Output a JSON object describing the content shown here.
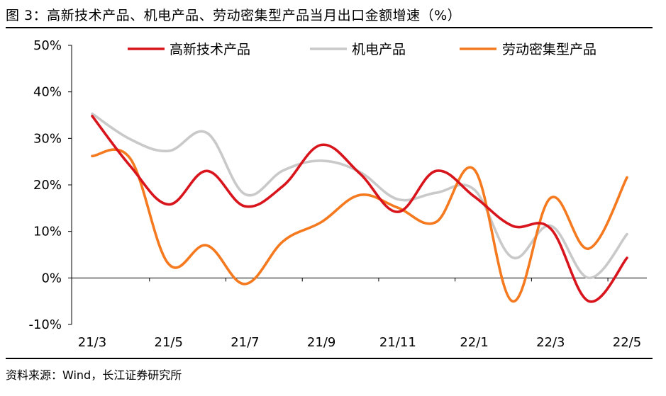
{
  "figure": {
    "title": "图 3：高新技术产品、机电产品、劳动密集型产品当月出口金额增速（%）",
    "source": "资料来源：Wind，长江证券研究所"
  },
  "chart_data": {
    "type": "line",
    "title": "高新技术产品、机电产品、劳动密集型产品当月出口金额增速（%）",
    "xlabel": "",
    "ylabel": "",
    "ylim": [
      -10,
      50
    ],
    "yticks": [
      -10,
      0,
      10,
      20,
      30,
      40,
      50
    ],
    "ytick_labels": [
      "-10%",
      "0%",
      "10%",
      "20%",
      "30%",
      "40%",
      "50%"
    ],
    "xtick_labels": [
      "21/3",
      "21/5",
      "21/7",
      "21/9",
      "21/11",
      "22/1",
      "22/3",
      "22/5"
    ],
    "categories": [
      "21/3",
      "21/4",
      "21/5",
      "21/6",
      "21/7",
      "21/8",
      "21/9",
      "21/10",
      "21/11",
      "21/12",
      "22/1",
      "22/2",
      "22/3",
      "22/4",
      "22/5"
    ],
    "legend_position": "top",
    "series": [
      {
        "name": "高新技术产品",
        "color": "#d8141c",
        "values": [
          34.8,
          24.0,
          15.8,
          23.0,
          15.4,
          19.8,
          28.6,
          22.5,
          14.2,
          23.0,
          17.5,
          11.2,
          10.6,
          -5.0,
          4.3
        ]
      },
      {
        "name": "机电产品",
        "color": "#c9c9c9",
        "values": [
          35.3,
          29.8,
          27.3,
          31.2,
          18.0,
          23.1,
          25.2,
          22.8,
          16.9,
          18.3,
          19.0,
          4.4,
          11.2,
          0.0,
          9.4
        ]
      },
      {
        "name": "劳动密集型产品",
        "color": "#f4791f",
        "values": [
          26.2,
          25.6,
          3.0,
          7.0,
          -1.3,
          7.9,
          12.0,
          17.8,
          15.1,
          12.0,
          23.3,
          -5.0,
          17.2,
          6.3,
          21.6
        ]
      }
    ]
  }
}
